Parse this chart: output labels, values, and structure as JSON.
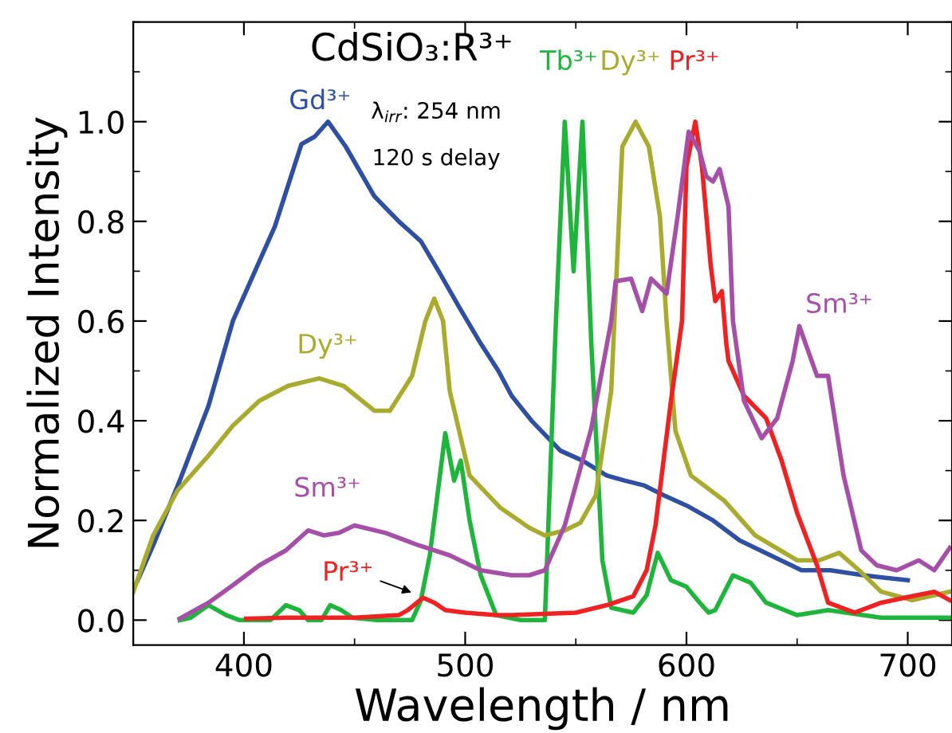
{
  "chart_data": {
    "type": "line",
    "title": "CdSiO₃:R³⁺",
    "xlabel": "Wavelength / nm",
    "ylabel": "Normalized Intensity",
    "xlim": [
      350,
      720
    ],
    "xticks": [
      400,
      500,
      600,
      700
    ],
    "ylim": [
      -0.05,
      1.2
    ],
    "yticks": [
      {
        "value": 0,
        "label": "0.0"
      },
      0.2,
      0.4,
      0.6,
      0.8,
      {
        "value": 1,
        "label": "1.0"
      }
    ],
    "grid": false,
    "legend": false,
    "marker": "none",
    "line_style": "solid",
    "series": [
      {
        "name": "Gd³⁺",
        "color": "#2f4fa3",
        "x": [
          352,
          359,
          371,
          384,
          395,
          405,
          414,
          426,
          432,
          438,
          446,
          459,
          470,
          480,
          488,
          497,
          507,
          515,
          521,
          530,
          543,
          553,
          564,
          572,
          581,
          590,
          600,
          612,
          624,
          638,
          652,
          665,
          680,
          690,
          700
        ],
        "values": [
          0.08,
          0.15,
          0.28,
          0.43,
          0.6,
          0.7,
          0.79,
          0.955,
          0.97,
          1.0,
          0.95,
          0.85,
          0.8,
          0.76,
          0.7,
          0.63,
          0.555,
          0.5,
          0.45,
          0.4,
          0.34,
          0.32,
          0.29,
          0.28,
          0.27,
          0.25,
          0.23,
          0.2,
          0.16,
          0.13,
          0.1,
          0.1,
          0.09,
          0.085,
          0.08
        ]
      },
      {
        "name": "Tb³⁺",
        "color": "#1fb43c",
        "x": [
          371,
          376,
          384,
          392,
          398,
          412,
          419,
          425,
          429,
          435,
          439,
          444,
          449,
          460,
          476,
          480,
          484,
          491,
          495,
          498,
          502,
          507,
          514,
          525,
          536,
          541,
          545,
          549,
          553,
          557,
          562,
          566,
          576,
          582,
          587,
          593,
          600,
          605,
          610,
          613,
          621,
          629,
          636,
          650,
          664,
          688,
          719
        ],
        "values": [
          0.0,
          0.005,
          0.03,
          0.01,
          0.0,
          0.0,
          0.03,
          0.02,
          0.0,
          0.0,
          0.03,
          0.02,
          0.005,
          0.0,
          0.0,
          0.04,
          0.13,
          0.375,
          0.28,
          0.32,
          0.2,
          0.09,
          0.01,
          0.0,
          0.0,
          0.6,
          1.0,
          0.7,
          1.0,
          0.555,
          0.12,
          0.025,
          0.015,
          0.05,
          0.135,
          0.08,
          0.067,
          0.04,
          0.015,
          0.02,
          0.09,
          0.075,
          0.035,
          0.01,
          0.02,
          0.005,
          0.005
        ]
      },
      {
        "name": "Dy³⁺",
        "color": "#a8ab2e",
        "x": [
          350,
          359,
          370,
          384,
          395,
          407,
          420,
          434,
          445,
          459,
          466,
          476,
          482,
          486,
          490,
          493,
          502,
          516,
          529,
          536,
          545,
          552,
          559,
          566,
          571,
          577,
          583,
          588,
          591,
          595,
          602,
          617,
          631,
          650,
          660,
          669,
          678,
          688,
          702,
          719
        ],
        "values": [
          0.057,
          0.17,
          0.26,
          0.33,
          0.39,
          0.44,
          0.47,
          0.485,
          0.47,
          0.42,
          0.42,
          0.49,
          0.6,
          0.645,
          0.6,
          0.46,
          0.29,
          0.225,
          0.185,
          0.17,
          0.18,
          0.195,
          0.25,
          0.46,
          0.95,
          1.0,
          0.95,
          0.81,
          0.6,
          0.38,
          0.29,
          0.24,
          0.17,
          0.12,
          0.12,
          0.135,
          0.1,
          0.057,
          0.04,
          0.057
        ]
      },
      {
        "name": "Pr³⁺",
        "color": "#ee2222",
        "x": [
          401,
          420,
          450,
          470,
          474,
          481,
          486,
          491,
          500,
          514,
          521,
          550,
          564,
          576,
          582,
          586,
          593,
          598,
          600,
          604,
          607,
          611,
          613,
          616,
          618,
          619,
          626,
          636,
          643,
          650,
          659,
          664,
          676,
          688,
          702,
          712,
          719
        ],
        "values": [
          0.003,
          0.005,
          0.005,
          0.01,
          0.02,
          0.045,
          0.035,
          0.02,
          0.015,
          0.01,
          0.01,
          0.015,
          0.03,
          0.048,
          0.1,
          0.19,
          0.44,
          0.6,
          0.91,
          1.0,
          0.91,
          0.71,
          0.64,
          0.66,
          0.555,
          0.52,
          0.45,
          0.405,
          0.32,
          0.215,
          0.11,
          0.035,
          0.015,
          0.035,
          0.048,
          0.057,
          0.04
        ]
      },
      {
        "name": "Sm³⁺",
        "color": "#a64fa8",
        "x": [
          371,
          384,
          395,
          407,
          419,
          429,
          436,
          443,
          450,
          464,
          479,
          493,
          507,
          521,
          529,
          536,
          545,
          557,
          566,
          568,
          575,
          580,
          584,
          591,
          596,
          601,
          606,
          609,
          612,
          615,
          619,
          621,
          626,
          634,
          641,
          648,
          651,
          659,
          664,
          671,
          679,
          686,
          695,
          705,
          712,
          719
        ],
        "values": [
          0.003,
          0.035,
          0.07,
          0.11,
          0.14,
          0.18,
          0.17,
          0.175,
          0.19,
          0.175,
          0.15,
          0.13,
          0.1,
          0.09,
          0.09,
          0.1,
          0.19,
          0.385,
          0.6,
          0.68,
          0.685,
          0.62,
          0.685,
          0.655,
          0.81,
          0.98,
          0.94,
          0.89,
          0.88,
          0.905,
          0.83,
          0.6,
          0.44,
          0.365,
          0.405,
          0.52,
          0.59,
          0.49,
          0.49,
          0.29,
          0.14,
          0.11,
          0.1,
          0.12,
          0.1,
          0.145
        ]
      }
    ],
    "annotations": [
      "λ$_{irr}$: 254 nm",
      "120 s delay"
    ]
  }
}
